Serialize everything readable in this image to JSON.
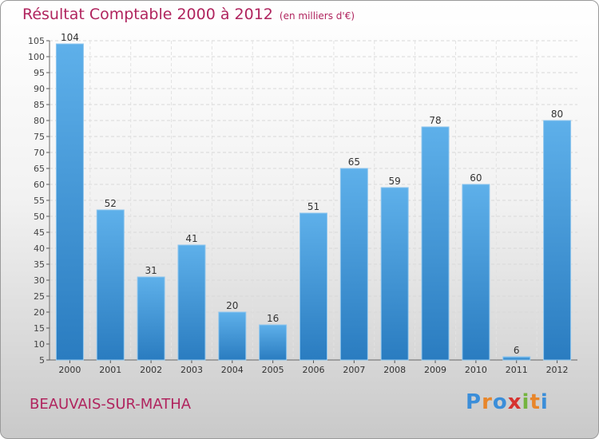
{
  "title": "Résultat Comptable 2000 à 2012",
  "title_unit": "(en milliers d'€)",
  "location": "BEAUVAIS-SUR-MATHA",
  "logo": {
    "letters": [
      "P",
      "r",
      "o",
      "x",
      "i",
      "t",
      "i"
    ],
    "colors": [
      "#3b8ed9",
      "#e8862a",
      "#3b8ed9",
      "#d6322f",
      "#74b43f",
      "#e8862a",
      "#3b8ed9"
    ]
  },
  "chart_data": {
    "type": "bar",
    "title": "Résultat Comptable 2000 à 2012",
    "categories": [
      "2000",
      "2001",
      "2002",
      "2003",
      "2004",
      "2005",
      "2006",
      "2007",
      "2008",
      "2009",
      "2010",
      "2011",
      "2012"
    ],
    "values": [
      104,
      52,
      31,
      41,
      20,
      16,
      51,
      65,
      59,
      78,
      60,
      6,
      80
    ],
    "data_labels": [
      "104",
      "52",
      "31",
      "41",
      "20",
      "16",
      "51",
      "65",
      "59",
      "78",
      "60",
      "6",
      "80"
    ],
    "ylim": [
      5,
      105
    ],
    "yticks": [
      5,
      10,
      15,
      20,
      25,
      30,
      35,
      40,
      45,
      50,
      55,
      60,
      65,
      70,
      75,
      80,
      85,
      90,
      95,
      100,
      105
    ],
    "grid": true,
    "bar_color": "#4a9ede"
  }
}
